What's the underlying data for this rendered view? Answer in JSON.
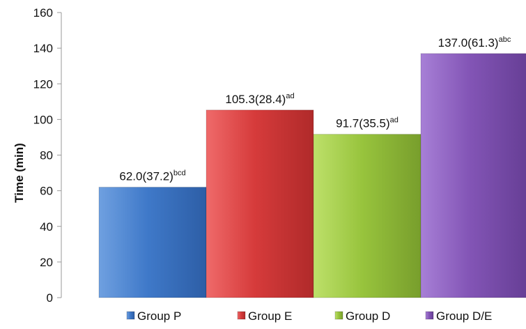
{
  "chart_data": {
    "type": "bar",
    "categories": [
      "Group P",
      "Group E",
      "Group D",
      "Group D/E"
    ],
    "values": [
      62.0,
      105.3,
      91.7,
      137.0
    ],
    "sd": [
      37.2,
      28.4,
      35.5,
      61.3
    ],
    "data_labels": [
      {
        "main": "62.0(37.2)",
        "sup": "bcd"
      },
      {
        "main": "105.3(28.4)",
        "sup": "ad"
      },
      {
        "main": "91.7(35.5)",
        "sup": "ad"
      },
      {
        "main": "137.0(61.3)",
        "sup": "abc"
      }
    ],
    "colors": [
      "#3f79c9",
      "#d63b3b",
      "#98c43d",
      "#8355b6"
    ],
    "title": "",
    "xlabel": "",
    "ylabel": "Time (min)",
    "ylim": [
      0,
      160
    ],
    "yticks": [
      0,
      20,
      40,
      60,
      80,
      100,
      120,
      140,
      160
    ],
    "grid": false,
    "legend": "bottom"
  }
}
